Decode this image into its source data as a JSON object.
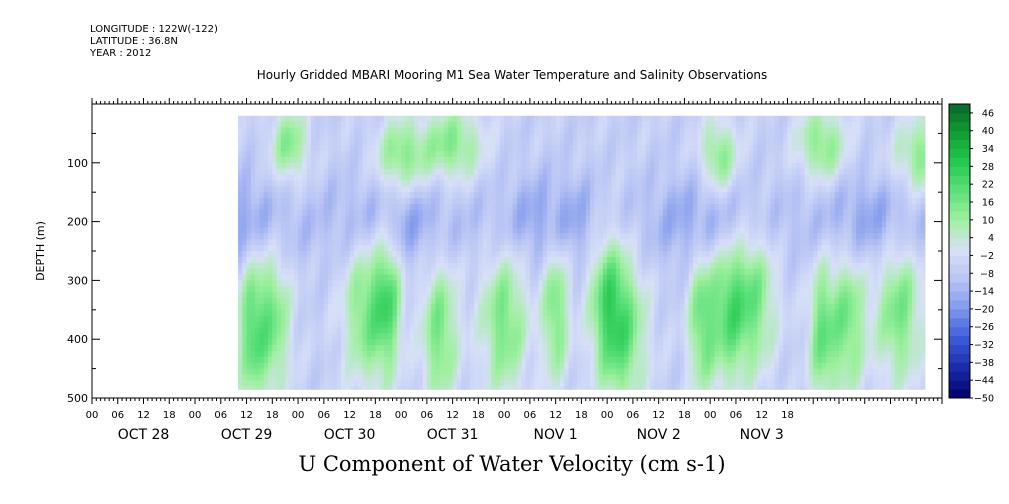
{
  "metadata": {
    "longitude": "LONGITUDE : 122W(-122)",
    "latitude": "LATITUDE : 36.8N",
    "year": "YEAR : 2012"
  },
  "chart_data": {
    "type": "heatmap",
    "title": "Hourly Gridded MBARI Mooring M1 Sea Water Temperature and Salinity Observations",
    "variable_label": "U Component of Water Velocity (cm s-1)",
    "ylabel": "DEPTH (m)",
    "ylim": [
      0,
      500
    ],
    "y_inverted": true,
    "y_ticks": [
      100,
      200,
      300,
      400,
      500
    ],
    "x_hour_ticks": [
      "00",
      "06",
      "12",
      "18",
      "00",
      "06",
      "12",
      "18",
      "00",
      "06",
      "12",
      "18",
      "00",
      "06",
      "12",
      "18",
      "00",
      "06",
      "12",
      "18",
      "00",
      "06",
      "12",
      "18",
      "00",
      "06",
      "12",
      "18"
    ],
    "x_day_labels": [
      "OCT 28",
      "OCT 29",
      "OCT 30",
      "OCT 31",
      "NOV  1",
      "NOV  2",
      "NOV  3"
    ],
    "data_time_range_hours": [
      10,
      170
    ],
    "data_depth_range_m": [
      20,
      485
    ],
    "colorbar": {
      "levels": [
        -50,
        -44,
        -38,
        -32,
        -26,
        -20,
        -14,
        -8,
        -2,
        4,
        10,
        16,
        22,
        28,
        34,
        40,
        46
      ],
      "minor_levels": [
        -50,
        -47,
        -44,
        -41,
        -38,
        -35,
        -32,
        -29,
        -26,
        -23,
        -20,
        -17,
        -14,
        -11,
        -8,
        -5,
        -2,
        1,
        4,
        7,
        10,
        13,
        16,
        19,
        22,
        25,
        28,
        31,
        34,
        37,
        40,
        43,
        46,
        49
      ],
      "colors_negative": [
        "#00006a",
        "#1a2aa8",
        "#3b5ad8",
        "#7f98ec",
        "#b8c4f4"
      ],
      "color_neutral": "#d8e0f8",
      "colors_positive": [
        "#a0f0a0",
        "#5ce07a",
        "#22c84c",
        "#0f9a30",
        "#06602a"
      ]
    },
    "approx_field": {
      "description_hint": "positive (eastward) columns at depth and near surface, negative band ~150-250 m",
      "surface_pos_centers_hours": [
        22,
        48,
        60,
        122,
        146,
        170
      ],
      "deep_pos_centers_hours": [
        13,
        18,
        40,
        45,
        57,
        72,
        84,
        96,
        100,
        118,
        124,
        130,
        146,
        152,
        164
      ],
      "neg_band_depth_m": 200
    }
  }
}
